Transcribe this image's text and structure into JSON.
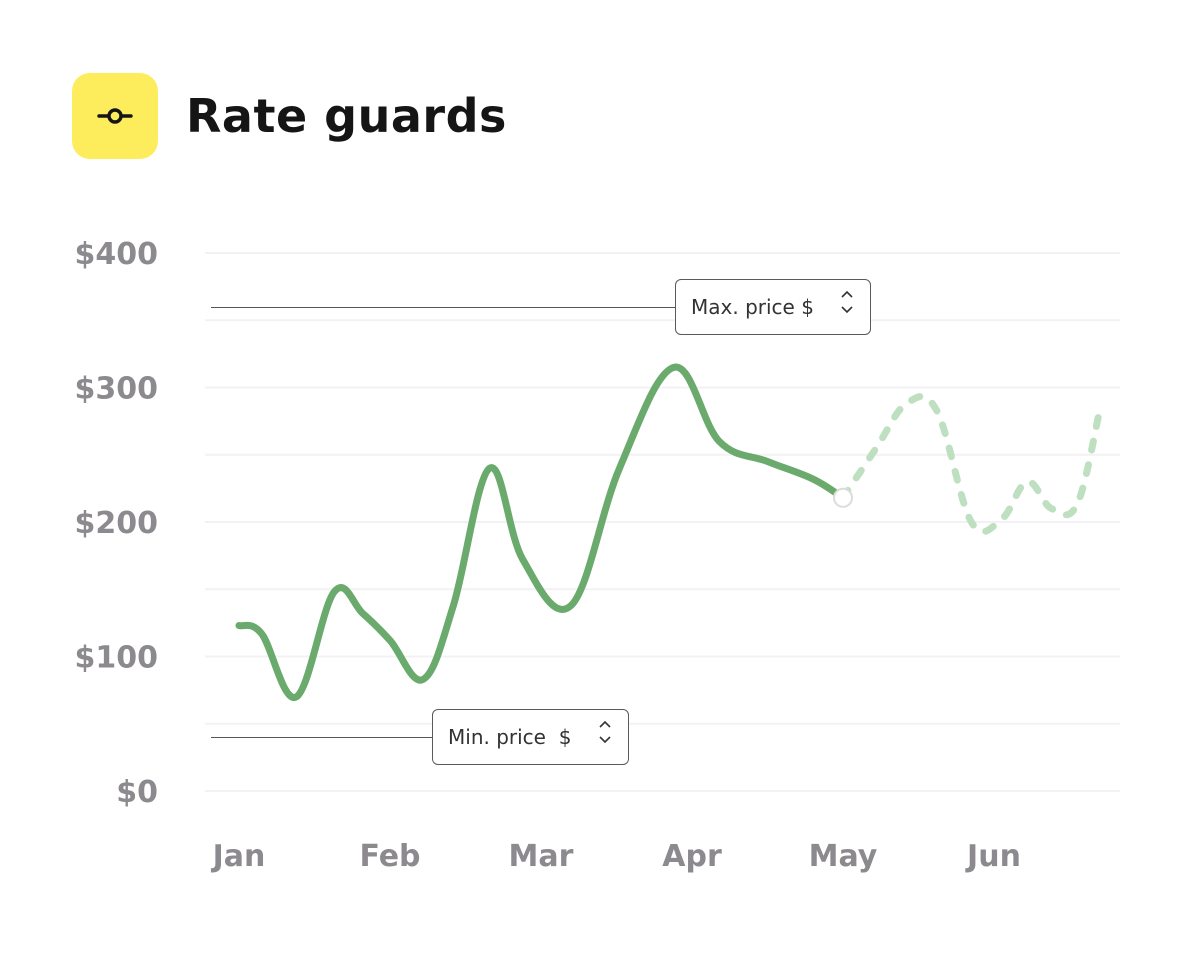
{
  "header": {
    "title": "Rate guards",
    "icon": "slider-handle-icon",
    "icon_bg": "#fded5c"
  },
  "guards": {
    "max": {
      "label": "Max. price $",
      "value": 360
    },
    "min": {
      "label": "Min. price  $",
      "value": 40
    }
  },
  "chart_data": {
    "type": "line",
    "title": "",
    "xlabel": "",
    "ylabel": "",
    "categories": [
      "Jan",
      "Feb",
      "Mar",
      "Apr",
      "May",
      "Jun"
    ],
    "ylim": [
      0,
      400
    ],
    "yticks": [
      "$0",
      "$100",
      "$200",
      "$300",
      "$400"
    ],
    "grid": true,
    "series": [
      {
        "style": "solid",
        "color": "#6aaa6c",
        "x": [
          0.0,
          0.15,
          0.38,
          0.63,
          0.82,
          1.0,
          1.22,
          1.42,
          1.66,
          1.88,
          2.2,
          2.52,
          2.88,
          3.18,
          3.5,
          3.8,
          4.0
        ],
        "y": [
          123,
          117,
          70,
          148,
          132,
          112,
          83,
          138,
          240,
          172,
          138,
          240,
          315,
          260,
          245,
          232,
          218
        ]
      },
      {
        "style": "dashed",
        "color": "#bfe0c0",
        "x": [
          4.0,
          4.22,
          4.42,
          4.62,
          4.85,
          5.05,
          5.22,
          5.38,
          5.55,
          5.7
        ],
        "y": [
          218,
          255,
          288,
          283,
          200,
          202,
          230,
          210,
          213,
          283
        ]
      }
    ]
  }
}
